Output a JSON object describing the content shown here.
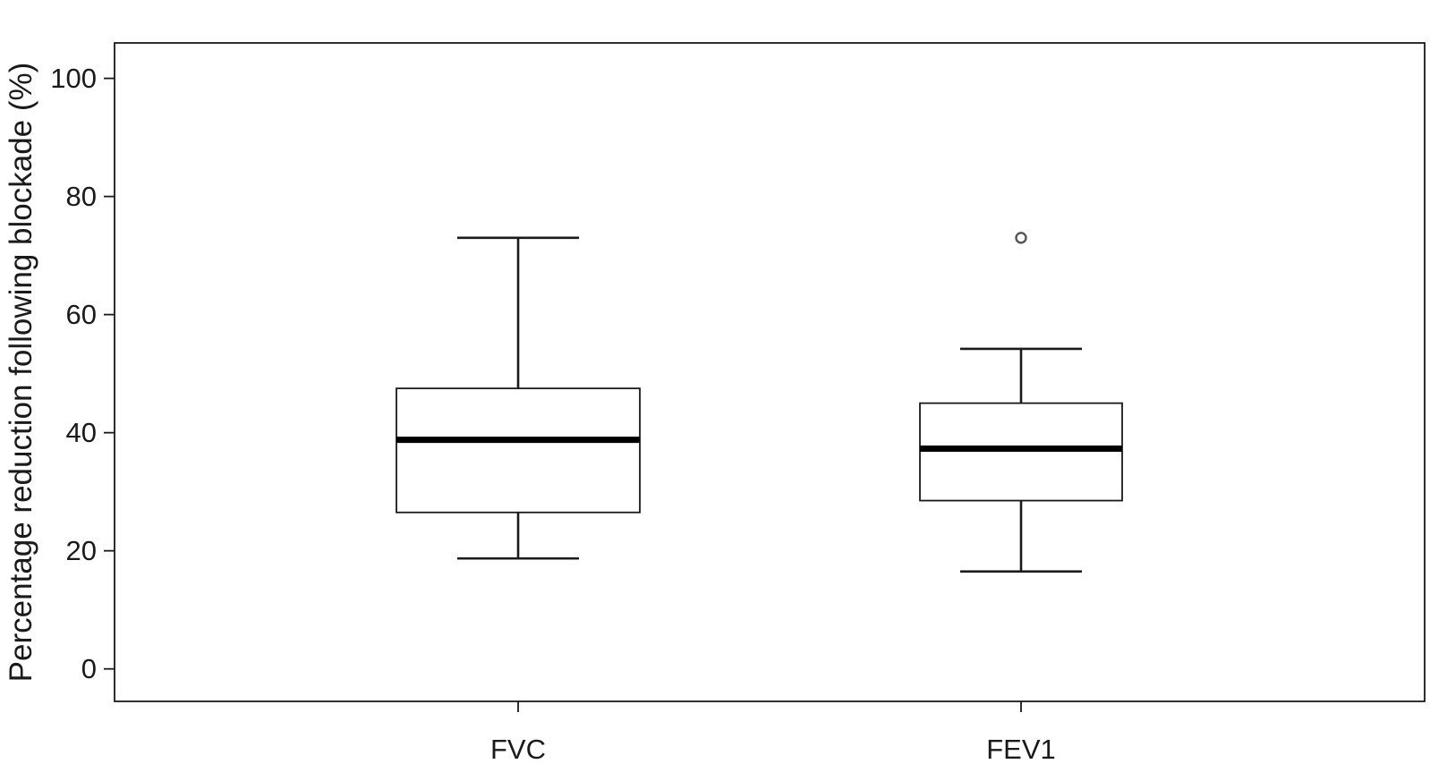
{
  "chart_data": {
    "type": "box",
    "title": "",
    "xlabel": "",
    "ylabel": "Percentage reduction following blockade (%)",
    "ylim": [
      -5.5,
      106
    ],
    "yticks": [
      0,
      20,
      40,
      60,
      80,
      100
    ],
    "ytick_labels": [
      "0",
      "20",
      "40",
      "60",
      "80",
      "100"
    ],
    "grid": false,
    "legend": "none",
    "categories": [
      "FVC",
      "FEV1"
    ],
    "boxes": [
      {
        "category": "FVC",
        "whisker_low": 18.7,
        "q1": 26.5,
        "median": 38.8,
        "q3": 47.5,
        "whisker_high": 73.0,
        "outliers": []
      },
      {
        "category": "FEV1",
        "whisker_low": 16.5,
        "q1": 28.5,
        "median": 37.3,
        "q3": 45.0,
        "whisker_high": 54.2,
        "outliers": [
          73.0
        ]
      }
    ],
    "colors": {
      "box_fill": "#ffffff",
      "box_stroke": "#1a1a1a",
      "median": "#000000",
      "axes": "#1a1a1a",
      "outlier": "#555555"
    }
  }
}
